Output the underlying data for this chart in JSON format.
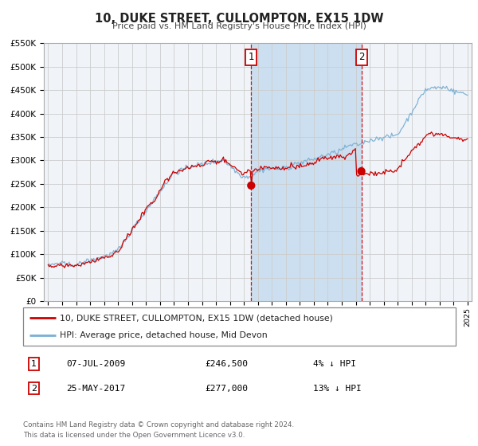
{
  "title": "10, DUKE STREET, CULLOMPTON, EX15 1DW",
  "subtitle": "Price paid vs. HM Land Registry's House Price Index (HPI)",
  "legend_line1": "10, DUKE STREET, CULLOMPTON, EX15 1DW (detached house)",
  "legend_line2": "HPI: Average price, detached house, Mid Devon",
  "annotation1_date": "07-JUL-2009",
  "annotation1_price": "£246,500",
  "annotation1_hpi": "4% ↓ HPI",
  "annotation2_date": "25-MAY-2017",
  "annotation2_price": "£277,000",
  "annotation2_hpi": "13% ↓ HPI",
  "footer_line1": "Contains HM Land Registry data © Crown copyright and database right 2024.",
  "footer_line2": "This data is licensed under the Open Government Licence v3.0.",
  "price_color": "#cc0000",
  "hpi_color": "#7ab0d4",
  "vline_color": "#cc0000",
  "highlight_color": "#ccdff0",
  "point1_x_year": 2009.52,
  "point1_y": 246500,
  "point2_x_year": 2017.4,
  "point2_y": 277000,
  "ylim": [
    0,
    550000
  ],
  "xlim_start": 1994.7,
  "xlim_end": 2025.3,
  "grid_color": "#cccccc",
  "background_color": "#ffffff",
  "plot_bg_color": "#f0f4f8"
}
